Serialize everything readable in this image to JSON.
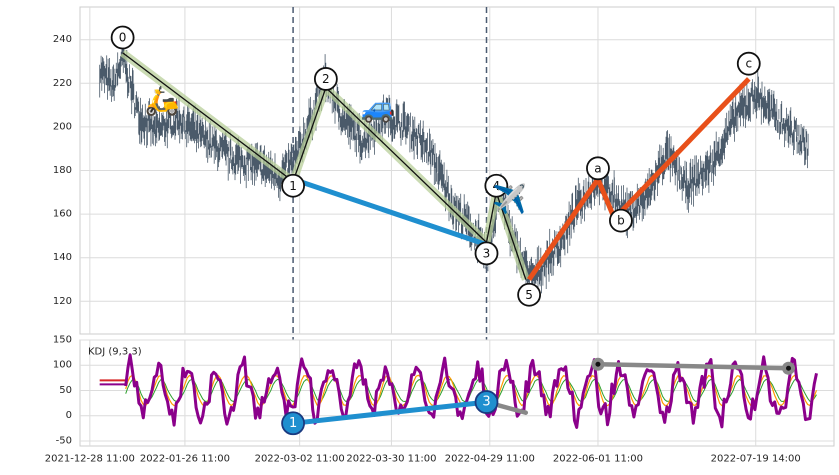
{
  "chart_data": [
    {
      "type": "line",
      "panel": "price",
      "ylim": [
        105,
        255
      ],
      "yticks": [
        120,
        140,
        160,
        180,
        200,
        220,
        240
      ],
      "grid": true,
      "series": [
        {
          "role": "price-trace",
          "color": "#4a5a6a",
          "anchors": [
            [
              "2021-12-31 11:00",
              226
            ],
            [
              "2022-01-04 11:00",
              218
            ],
            [
              "2022-01-07 11:00",
              232
            ],
            [
              "2022-01-12 11:00",
              205
            ],
            [
              "2022-01-17 11:00",
              198
            ],
            [
              "2022-01-24 11:00",
              204
            ],
            [
              "2022-02-02 11:00",
              193
            ],
            [
              "2022-02-09 11:00",
              186
            ],
            [
              "2022-02-18 11:00",
              182
            ],
            [
              "2022-02-24 11:00",
              177
            ],
            [
              "2022-03-01 11:00",
              186
            ],
            [
              "2022-03-07 11:00",
              210
            ],
            [
              "2022-03-10 11:00",
              222
            ],
            [
              "2022-03-14 11:00",
              207
            ],
            [
              "2022-03-21 11:00",
              193
            ],
            [
              "2022-03-28 11:00",
              205
            ],
            [
              "2022-04-04 11:00",
              200
            ],
            [
              "2022-04-11 11:00",
              188
            ],
            [
              "2022-04-18 11:00",
              163
            ],
            [
              "2022-04-25 11:00",
              150
            ],
            [
              "2022-04-28 11:00",
              140
            ],
            [
              "2022-05-02 11:00",
              172
            ],
            [
              "2022-05-06 11:00",
              147
            ],
            [
              "2022-05-12 11:00",
              130
            ],
            [
              "2022-05-16 11:00",
              138
            ],
            [
              "2022-05-20 11:00",
              145
            ],
            [
              "2022-05-26 11:00",
              164
            ],
            [
              "2022-06-01 11:00",
              176
            ],
            [
              "2022-06-06 11:00",
              168
            ],
            [
              "2022-06-10 11:00",
              160
            ],
            [
              "2022-06-16 11:00",
              168
            ],
            [
              "2022-06-22 11:00",
              188
            ],
            [
              "2022-06-28 11:00",
              172
            ],
            [
              "2022-07-06 11:00",
              183
            ],
            [
              "2022-07-13 11:00",
              205
            ],
            [
              "2022-07-19 14:00",
              215
            ],
            [
              "2022-07-25 14:00",
              205
            ],
            [
              "2022-08-01 14:00",
              195
            ],
            [
              "2022-08-04 14:00",
              190
            ]
          ]
        },
        {
          "role": "wave-zigzag",
          "color": "#111111",
          "points": [
            [
              "2022-01-07 11:00",
              234
            ],
            [
              "2022-02-28 11:00",
              175
            ],
            [
              "2022-03-10 11:00",
              218
            ],
            [
              "2022-04-28 11:00",
              147
            ],
            [
              "2022-05-01 11:00",
              170
            ],
            [
              "2022-05-10 11:00",
              130
            ]
          ]
        },
        {
          "role": "wave-1-3-connector",
          "color": "#1f8fcf",
          "points": [
            [
              "2022-02-28 11:00",
              176
            ],
            [
              "2022-04-28 11:00",
              146
            ]
          ]
        },
        {
          "role": "correction-abc",
          "color": "#e8501a",
          "points": [
            [
              "2022-05-11 11:00",
              130
            ],
            [
              "2022-06-01 11:00",
              176
            ],
            [
              "2022-06-06 11:00",
              158
            ],
            [
              "2022-07-17 11:00",
              222
            ]
          ]
        }
      ],
      "wave_labels": [
        {
          "label": "0",
          "x": "2022-01-07 11:00",
          "y": 241
        },
        {
          "label": "1",
          "x": "2022-02-28 11:00",
          "y": 173
        },
        {
          "label": "2",
          "x": "2022-03-10 11:00",
          "y": 222
        },
        {
          "label": "3",
          "x": "2022-04-28 11:00",
          "y": 142
        },
        {
          "label": "4",
          "x": "2022-05-01 11:00",
          "y": 173
        },
        {
          "label": "5",
          "x": "2022-05-11 11:00",
          "y": 123
        },
        {
          "label": "a",
          "x": "2022-06-01 11:00",
          "y": 181
        },
        {
          "label": "b",
          "x": "2022-06-08 11:00",
          "y": 157
        },
        {
          "label": "c",
          "x": "2022-07-17 11:00",
          "y": 229
        }
      ],
      "markers": [
        {
          "icon": "scooter-icon",
          "glyph": "🛵",
          "x": "2022-01-19 11:00",
          "y": 212
        },
        {
          "icon": "car-icon",
          "glyph": "🚙",
          "x": "2022-03-26 11:00",
          "y": 209
        },
        {
          "icon": "airplane-icon",
          "glyph": "✈️",
          "x": "2022-05-05 11:00",
          "y": 167
        }
      ],
      "vlines": [
        "2022-02-28 11:00",
        "2022-04-28 11:00"
      ]
    },
    {
      "type": "line",
      "panel": "indicator",
      "title": "KDJ (9,3,3)",
      "ylim": [
        -60,
        150
      ],
      "yticks": [
        -50,
        0,
        50,
        100,
        150
      ],
      "grid": true,
      "colors": {
        "J": "#8b008b",
        "K": "#ff9900",
        "D": "#2ca02c",
        "base_early": "#d62728"
      },
      "connectors": [
        {
          "role": "kdj-1-3-connector",
          "color": "#1f8fcf",
          "points": [
            [
              "2022-02-28 11:00",
              -15
            ],
            [
              "2022-04-28 11:00",
              27
            ]
          ],
          "labels": [
            {
              "label": "1",
              "x": "2022-02-28 11:00",
              "y": -15
            },
            {
              "label": "3",
              "x": "2022-04-28 11:00",
              "y": 27
            }
          ]
        },
        {
          "role": "kdj-tail",
          "color": "#888888",
          "points": [
            [
              "2022-04-28 11:00",
              27
            ],
            [
              "2022-05-10 11:00",
              6
            ]
          ]
        },
        {
          "role": "kdj-divergence-line",
          "color": "#888888",
          "points": [
            [
              "2022-06-01 11:00",
              102
            ],
            [
              "2022-07-29 14:00",
              94
            ]
          ]
        }
      ]
    }
  ],
  "x_axis": {
    "tick_labels": [
      {
        "x": "2021-12-28 11:00",
        "label": "2021-12-28 11:00"
      },
      {
        "x": "2022-01-26 11:00",
        "label": "2022-01-26 11:00"
      },
      {
        "x": "2022-03-02 11:00",
        "label": "2022-03-02 11:00"
      },
      {
        "x": "2022-03-30 11:00",
        "label": "2022-03-30 11:00"
      },
      {
        "x": "2022-04-29 11:00",
        "label": "2022-04-29 11:00"
      },
      {
        "x": "2022-06-01 11:00",
        "label": "2022-06-01 11:00"
      },
      {
        "x": "2022-07-19 14:00",
        "label": "2022-07-19 14:00"
      }
    ],
    "range": [
      "2021-12-25 11:00",
      "2022-08-12 11:00"
    ]
  }
}
